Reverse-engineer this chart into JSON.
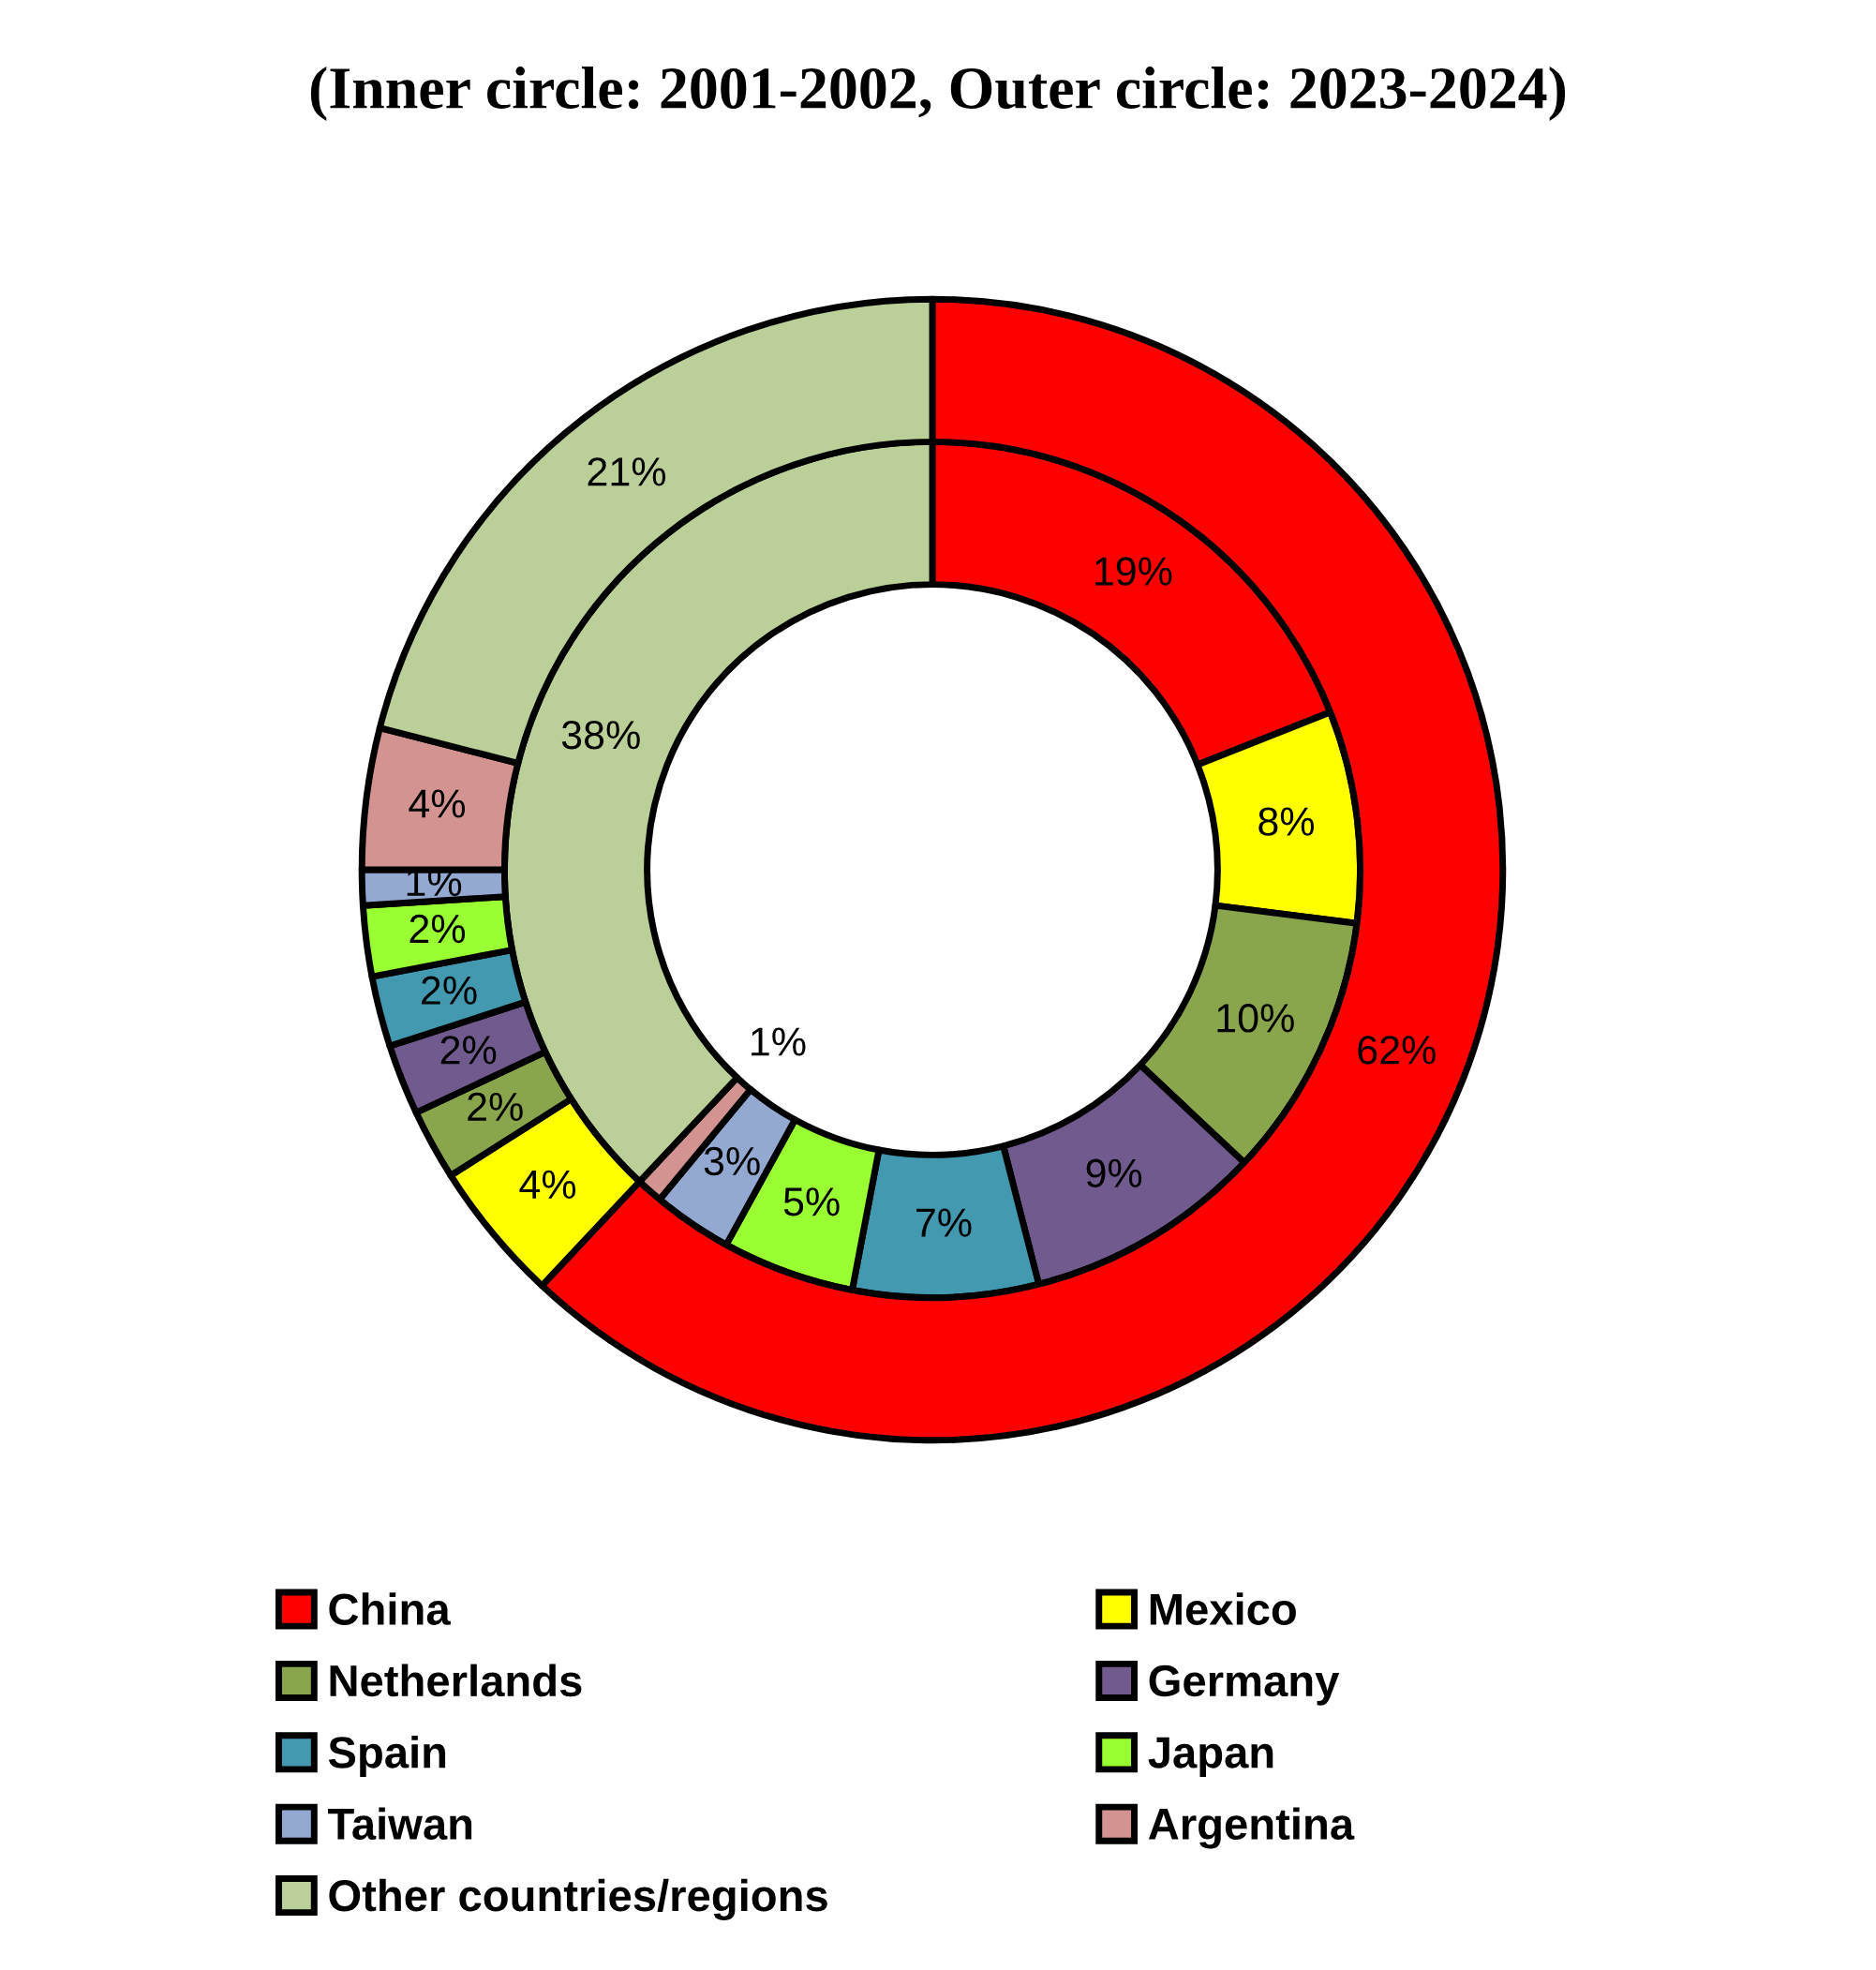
{
  "chart_data": {
    "type": "donut",
    "title": "(Inner circle: 2001-2002, Outer circle: 2023-2024)",
    "categories": [
      "China",
      "Mexico",
      "Netherlands",
      "Germany",
      "Spain",
      "Japan",
      "Taiwan",
      "Argentina",
      "Other countries/regions"
    ],
    "colors": [
      "#ff0000",
      "#ffff00",
      "#8aa64d",
      "#715a8e",
      "#4299b0",
      "#99ff33",
      "#94a9d1",
      "#d39391",
      "#bbcf98"
    ],
    "series": [
      {
        "values": [
          19,
          8,
          10,
          9,
          7,
          5,
          3,
          1,
          38
        ],
        "value_labels": [
          "19%",
          "8%",
          "10%",
          "9%",
          "7%",
          "5%",
          "3%",
          "1%",
          "38%"
        ]
      },
      {
        "values": [
          62,
          4,
          2,
          2,
          2,
          2,
          1,
          4,
          21
        ],
        "value_labels": [
          "62%",
          "4%",
          "2%",
          "2%",
          "2%",
          "2%",
          "1%",
          "4%",
          "21%"
        ]
      }
    ],
    "legend": "bottom"
  }
}
